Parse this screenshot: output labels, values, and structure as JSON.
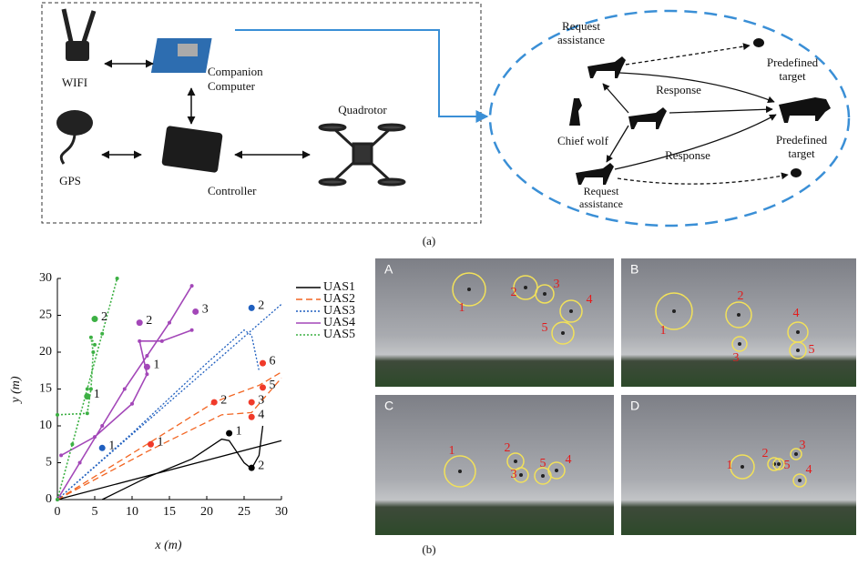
{
  "diagram": {
    "hardware": {
      "wifi": "WIFI",
      "companion": [
        "Companion",
        "Computer"
      ],
      "gps": "GPS",
      "controller": "Controller",
      "quadrotor": "Quadrotor"
    },
    "wolves": {
      "request_top": [
        "Request",
        "assistance"
      ],
      "target_top": [
        "Predefined",
        "target"
      ],
      "response_top": "Response",
      "chief": "Chief wolf",
      "target_mid": [
        "Predefined",
        "target"
      ],
      "response_bottom": "Response",
      "request_bottom": [
        "Request",
        "assistance"
      ]
    },
    "caption": "(a)"
  },
  "chart_data": {
    "type": "line",
    "xlabel": "x (m)",
    "ylabel": "y (m)",
    "xlim": [
      0,
      30
    ],
    "ylim": [
      0,
      30
    ],
    "xticks": [
      0,
      5,
      10,
      15,
      20,
      25,
      30
    ],
    "yticks": [
      0,
      5,
      10,
      15,
      20,
      25,
      30
    ],
    "series": [
      {
        "name": "UAS1",
        "color": "#000000",
        "dash": "solid",
        "markers": false,
        "x": [
          0,
          30,
          30,
          6,
          12,
          18,
          22,
          23,
          25,
          26,
          27,
          27.5
        ],
        "y": [
          0,
          8,
          null,
          0,
          3,
          5.5,
          8.2,
          8,
          5,
          4.2,
          6,
          10
        ]
      },
      {
        "name": "UAS2",
        "color": "#f26522",
        "dash": "dashed",
        "markers": false,
        "x": [
          0,
          12,
          21,
          23,
          27,
          30,
          30,
          0,
          12,
          22,
          26,
          30
        ],
        "y": [
          0,
          7.5,
          13.2,
          14,
          15.5,
          17.3,
          null,
          0,
          6.5,
          11.5,
          11.8,
          16.5
        ]
      },
      {
        "name": "UAS3",
        "color": "#1f5fbf",
        "dash": "dotted",
        "markers": false,
        "x": [
          0,
          30,
          30,
          0,
          10,
          20,
          25,
          26,
          27
        ],
        "y": [
          0,
          26.5,
          null,
          0,
          9,
          18.5,
          23,
          22.3,
          17.5
        ]
      },
      {
        "name": "UAS4",
        "color": "#a347b8",
        "dash": "solid",
        "markers": true,
        "x": [
          0,
          3,
          6,
          9,
          12,
          15,
          18,
          18,
          0.5,
          5,
          10,
          12,
          11,
          14,
          18
        ],
        "y": [
          0,
          5,
          10,
          15,
          19.5,
          24,
          29,
          null,
          6,
          8.5,
          13,
          17,
          21.5,
          21.5,
          23
        ]
      },
      {
        "name": "UAS5",
        "color": "#3cb043",
        "dash": "dotted",
        "markers": true,
        "x": [
          0,
          2,
          4,
          6,
          8,
          8,
          0,
          4,
          4.5,
          4.8,
          4.5,
          5
        ],
        "y": [
          0,
          7.5,
          15,
          22.5,
          30,
          null,
          11.5,
          11.7,
          15,
          20,
          22,
          21
        ]
      }
    ],
    "points": [
      {
        "x": 23,
        "y": 9,
        "label": "1",
        "color": "#000000"
      },
      {
        "x": 26,
        "y": 4.3,
        "label": "2",
        "color": "#000000"
      },
      {
        "x": 12.5,
        "y": 7.5,
        "label": "1",
        "color": "#f03a2a"
      },
      {
        "x": 21,
        "y": 13.2,
        "label": "2",
        "color": "#f03a2a"
      },
      {
        "x": 26,
        "y": 13.2,
        "label": "3",
        "color": "#f03a2a"
      },
      {
        "x": 26,
        "y": 11.2,
        "label": "4",
        "color": "#f03a2a"
      },
      {
        "x": 27.5,
        "y": 15.2,
        "label": "5",
        "color": "#f03a2a"
      },
      {
        "x": 27.5,
        "y": 18.5,
        "label": "6",
        "color": "#f03a2a"
      },
      {
        "x": 6,
        "y": 7,
        "label": "1",
        "color": "#1f5fbf"
      },
      {
        "x": 26,
        "y": 26,
        "label": "2",
        "color": "#1f5fbf"
      },
      {
        "x": 12,
        "y": 18,
        "label": "1",
        "color": "#a347b8"
      },
      {
        "x": 11,
        "y": 24,
        "label": "2",
        "color": "#a347b8"
      },
      {
        "x": 18.5,
        "y": 25.5,
        "label": "3",
        "color": "#a347b8"
      },
      {
        "x": 4,
        "y": 14,
        "label": "1",
        "color": "#3cb043"
      },
      {
        "x": 5,
        "y": 24.5,
        "label": "2",
        "color": "#3cb043"
      }
    ]
  },
  "photos": [
    {
      "letter": "A",
      "labels": [
        "1",
        "2",
        "3",
        "4",
        "5"
      ]
    },
    {
      "letter": "B",
      "labels": [
        "1",
        "2",
        "3",
        "4",
        "5"
      ]
    },
    {
      "letter": "C",
      "labels": [
        "1",
        "2",
        "3",
        "4",
        "5"
      ]
    },
    {
      "letter": "D",
      "labels": [
        "1",
        "2",
        "3",
        "4",
        "5"
      ]
    }
  ],
  "caption_b": "(b)"
}
